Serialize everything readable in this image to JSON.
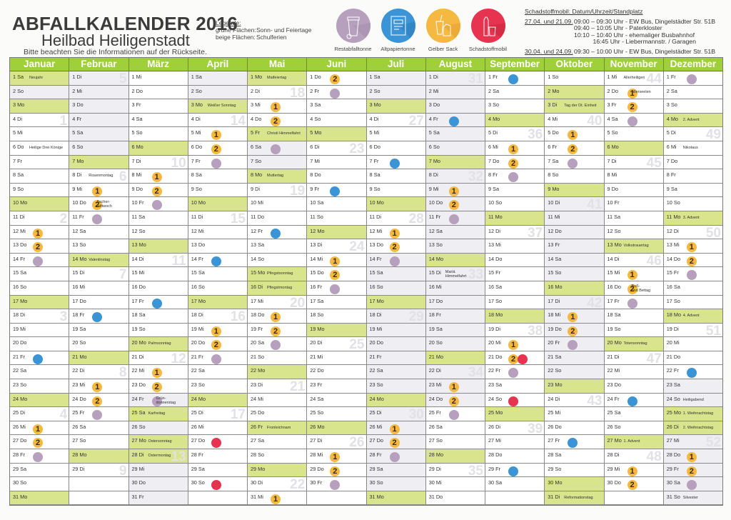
{
  "header": {
    "title": "ABFALLKALENDER 2016",
    "subtitle": "Heilbad Heiligenstadt",
    "note": "Bitte beachten Sie die Informationen auf der Rückseite."
  },
  "legend": {
    "heading": "Legende:",
    "rows": [
      {
        "key": "grüne Flächen:",
        "value": "Sonn- und Feiertage"
      },
      {
        "key": "beige Flächen:",
        "value": "Schulferien"
      }
    ]
  },
  "waste_types": [
    {
      "id": "restabfall",
      "label": "Restabfalltonne",
      "icon": "trash-bin-icon",
      "color": "#b7a0bd"
    },
    {
      "id": "altpapier",
      "label": "Altpapiertonne",
      "icon": "newspaper-icon",
      "color": "#3a94d6"
    },
    {
      "id": "gelber_sack",
      "label": "Gelber Sack",
      "icon": "packaging-icon",
      "color": "#f5b942"
    },
    {
      "id": "schadstoff",
      "label": "Schadstoffmobil",
      "icon": "chemical-bottle-icon",
      "color": "#e6334f"
    }
  ],
  "schadstoffmobil": {
    "heading": "Schadstoffmobil: Datum/Uhrzeit/Standplatz",
    "blocks": [
      {
        "dates": "27.04. und 21.09.",
        "times": [
          "09:00 – 09:30 Uhr - EW Bus, Dingelstädter Str. 51B",
          "09:40 – 10:05 Uhr - Paterkloster",
          "10:10 – 10:40 Uhr - ehemaliger Busbahnhof",
          "           16:45 Uhr - Liebermannstr. / Garagen"
        ]
      },
      {
        "dates": "30.04. und 24.09.",
        "times": [
          "09:30 – 10:00 Uhr - EW Bus, Dingelstädter Str. 51B"
        ]
      }
    ]
  },
  "colors": {
    "header_green": "#9fcf3a",
    "holiday_green": "#d9e58c",
    "ferien_beige": "#efeff3",
    "gelber_sack": "#f5b942",
    "restabfall": "#b7a0bd",
    "altpapier": "#3a94d6",
    "schadstoff": "#e6334f"
  },
  "months": [
    {
      "name": "Januar",
      "start": 5,
      "days": 31,
      "green": [
        1,
        3,
        10,
        17,
        24,
        31
      ],
      "beige": [
        2
      ],
      "notes": {
        "1": "Neujahr",
        "6": "Heilige Drei Könige"
      },
      "marks": {
        "12": [
          "1"
        ],
        "13": [
          "2"
        ],
        "14": [
          "p"
        ],
        "21": [
          "b"
        ],
        "26": [
          "1"
        ],
        "27": [
          "2"
        ],
        "28": [
          "p"
        ]
      },
      "weeks": {
        "4": "1",
        "11": "2",
        "18": "3",
        "25": "4"
      }
    },
    {
      "name": "Februar",
      "start": 1,
      "days": 29,
      "green": [
        7,
        14,
        21,
        28
      ],
      "beige": [
        1,
        2,
        3,
        4,
        5,
        6
      ],
      "notes": {
        "8": "Rosenmontag",
        "10": "Ascher-\nmittwoch",
        "14": "Valentinstag"
      },
      "marks": {
        "9": [
          "1"
        ],
        "10": [
          "2"
        ],
        "11": [
          "p"
        ],
        "18": [
          "b"
        ],
        "23": [
          "1"
        ],
        "24": [
          "2"
        ],
        "25": [
          "p"
        ]
      },
      "weeks": {
        "1": "5",
        "8": "6",
        "15": "7",
        "22": "8",
        "29": "9"
      }
    },
    {
      "name": "März",
      "start": 2,
      "days": 31,
      "green": [
        6,
        13,
        20,
        25,
        27,
        28
      ],
      "beige": [
        24,
        26,
        29,
        30,
        31
      ],
      "notes": {
        "20": "Palmsonntag",
        "24": "Grün-\ndonnerstag",
        "25": "Karfreitag",
        "27": "Ostersonntag",
        "28": "Ostermontag"
      },
      "marks": {
        "8": [
          "1"
        ],
        "9": [
          "2"
        ],
        "10": [
          "p"
        ],
        "17": [
          "b"
        ],
        "22": [
          "1"
        ],
        "23": [
          "2"
        ],
        "24": [
          "p"
        ]
      },
      "weeks": {
        "7": "10",
        "14": "11",
        "21": "12",
        "28": "13"
      }
    },
    {
      "name": "April",
      "start": 5,
      "days": 30,
      "green": [
        3,
        10,
        17,
        24
      ],
      "beige": [
        1,
        2
      ],
      "notes": {
        "3": "Weißer Sonntag"
      },
      "marks": {
        "5": [
          "1"
        ],
        "6": [
          "2"
        ],
        "7": [
          "p"
        ],
        "14": [
          "b"
        ],
        "19": [
          "1"
        ],
        "20": [
          "2"
        ],
        "21": [
          "p"
        ],
        "27": [
          "r"
        ],
        "30": [
          "r"
        ]
      },
      "weeks": {
        "4": "14",
        "11": "15",
        "18": "16",
        "25": "17"
      }
    },
    {
      "name": "Mai",
      "start": 0,
      "days": 31,
      "green": [
        1,
        5,
        8,
        15,
        16,
        22,
        26,
        29
      ],
      "beige": [
        6,
        7
      ],
      "notes": {
        "1": "Maifeiertag",
        "5": "Christi Himmelfahrt",
        "8": "Muttertag",
        "15": "Pfingstsonntag",
        "16": "Pfingstmontag",
        "26": "Fronleichnam"
      },
      "marks": {
        "3": [
          "1"
        ],
        "4": [
          "2"
        ],
        "6": [
          "p"
        ],
        "12": [
          "b"
        ],
        "18": [
          "1"
        ],
        "19": [
          "2"
        ],
        "20": [
          "p"
        ],
        "31": [
          "1"
        ]
      },
      "weeks": {
        "2": "18",
        "9": "19",
        "17": "20",
        "23": "21",
        "30": "22"
      }
    },
    {
      "name": "Juni",
      "start": 3,
      "days": 30,
      "green": [
        5,
        12,
        19,
        26
      ],
      "beige": [],
      "notes": {},
      "marks": {
        "1": [
          "2"
        ],
        "2": [
          "p"
        ],
        "9": [
          "b"
        ],
        "14": [
          "1"
        ],
        "15": [
          "2"
        ],
        "16": [
          "p"
        ],
        "28": [
          "1"
        ],
        "29": [
          "2"
        ],
        "30": [
          "p"
        ]
      },
      "weeks": {
        "6": "23",
        "13": "24",
        "20": "25",
        "27": "26"
      }
    },
    {
      "name": "Juli",
      "start": 5,
      "days": 31,
      "green": [
        3,
        10,
        17,
        24,
        31
      ],
      "beige": [
        1,
        2,
        14,
        15,
        16,
        18,
        19,
        20,
        21,
        22,
        23,
        25,
        26,
        27,
        28,
        29,
        30
      ],
      "notes": {},
      "marks": {
        "7": [
          "b"
        ],
        "12": [
          "1"
        ],
        "13": [
          "2"
        ],
        "14": [
          "p"
        ],
        "26": [
          "1"
        ],
        "27": [
          "2"
        ],
        "28": [
          "p"
        ]
      },
      "weeks": {
        "4": "27",
        "11": "28",
        "18": "29",
        "25": "30"
      }
    },
    {
      "name": "August",
      "start": 1,
      "days": 31,
      "green": [
        7,
        14,
        21,
        28
      ],
      "beige": [
        1,
        2,
        3,
        4,
        5,
        6,
        8,
        9,
        10,
        11,
        12,
        13,
        15,
        16,
        17,
        18,
        19,
        20,
        22,
        23,
        24
      ],
      "notes": {
        "15": "Mariä\nHimmelfahrt"
      },
      "marks": {
        "4": [
          "b"
        ],
        "9": [
          "1"
        ],
        "10": [
          "2"
        ],
        "11": [
          "p"
        ],
        "23": [
          "1"
        ],
        "24": [
          "2"
        ],
        "25": [
          "p"
        ]
      },
      "weeks": {
        "1": "31",
        "8": "32",
        "15": "33",
        "22": "34",
        "29": "35"
      }
    },
    {
      "name": "September",
      "start": 4,
      "days": 30,
      "green": [
        4,
        11,
        18,
        25
      ],
      "beige": [],
      "notes": {},
      "marks": {
        "1": [
          "b"
        ],
        "6": [
          "1"
        ],
        "7": [
          "2"
        ],
        "8": [
          "p"
        ],
        "20": [
          "1"
        ],
        "21": [
          "2",
          "r"
        ],
        "22": [
          "p"
        ],
        "24": [
          "r"
        ],
        "29": [
          "b"
        ]
      },
      "weeks": {
        "5": "36",
        "12": "37",
        "19": "38",
        "26": "39"
      }
    },
    {
      "name": "Oktober",
      "start": 6,
      "days": 31,
      "green": [
        2,
        3,
        9,
        16,
        23,
        30,
        31
      ],
      "beige": [
        10,
        11,
        12,
        13,
        14,
        15,
        17,
        18,
        19,
        20,
        21,
        22
      ],
      "notes": {
        "3": "Tag der Dt. Einheit",
        "31": "Reformationstag"
      },
      "marks": {
        "5": [
          "1"
        ],
        "6": [
          "2"
        ],
        "7": [
          "p"
        ],
        "18": [
          "1"
        ],
        "19": [
          "2"
        ],
        "20": [
          "p"
        ],
        "27": [
          "b"
        ]
      },
      "weeks": {
        "4": "40",
        "10": "41",
        "17": "42",
        "24": "43"
      }
    },
    {
      "name": "November",
      "start": 2,
      "days": 30,
      "green": [
        6,
        13,
        20,
        27
      ],
      "beige": [],
      "notes": {
        "1": "Allerheiligen",
        "2": "Allerseelen",
        "13": "Volkstrauertag",
        "16": "Buß-\nund Bettag",
        "20": "Totensonntag",
        "27": "1. Advent"
      },
      "marks": {
        "2": [
          "1"
        ],
        "3": [
          "2"
        ],
        "4": [
          "p"
        ],
        "15": [
          "1"
        ],
        "16": [
          "2"
        ],
        "17": [
          "p"
        ],
        "24": [
          "b"
        ],
        "29": [
          "1"
        ],
        "30": [
          "2"
        ]
      },
      "weeks": {
        "1": "44",
        "7": "45",
        "14": "46",
        "21": "47",
        "28": "48"
      }
    },
    {
      "name": "Dezember",
      "start": 4,
      "days": 31,
      "green": [
        4,
        11,
        18,
        25,
        26
      ],
      "beige": [
        23,
        24,
        27,
        28,
        29,
        30,
        31
      ],
      "notes": {
        "4": "2. Advent",
        "6": "Nikolaus",
        "11": "3. Advent",
        "18": "4. Advent",
        "24": "Heiligabend",
        "25": "1. Weihnachtstag",
        "26": "2. Weihnachtstag",
        "31": "Silvester"
      },
      "marks": {
        "1": [
          "p"
        ],
        "13": [
          "1"
        ],
        "14": [
          "2"
        ],
        "15": [
          "p"
        ],
        "22": [
          "b"
        ],
        "28": [
          "1"
        ],
        "29": [
          "2"
        ],
        "30": [
          "p"
        ]
      },
      "weeks": {
        "5": "49",
        "12": "50",
        "19": "51",
        "27": "52"
      }
    }
  ],
  "weekday_abbr": [
    "Mo",
    "Di",
    "Mi",
    "Do",
    "Fr",
    "Sa",
    "So"
  ]
}
